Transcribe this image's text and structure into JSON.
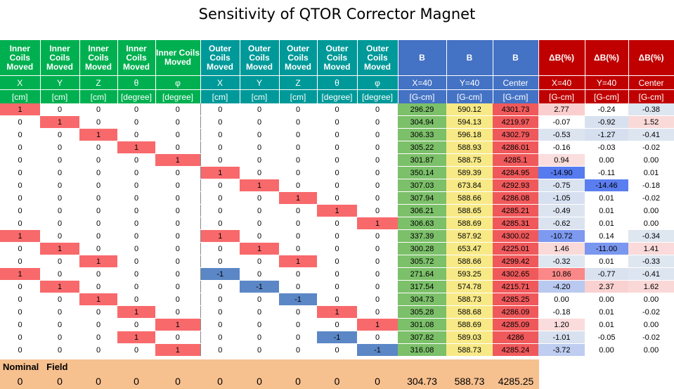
{
  "title": "Sensitivity of QTOR Corrector Magnet",
  "chart_data": {
    "type": "table",
    "header_group": [
      "Inner Coils Moved",
      "Inner Coils Moved",
      "Inner Coils Moved",
      "Inner Coils Moved",
      "Inner Coils Moved",
      "Outer Coils Moved",
      "Outer Coils Moved",
      "Outer Coils Moved",
      "Outer Coils Moved",
      "Outer Coils Moved",
      "B",
      "B",
      "B",
      "ΔB(%)",
      "ΔB(%)",
      "ΔB(%)"
    ],
    "header_sub": [
      "X",
      "Y",
      "Z",
      "θ",
      "φ",
      "X",
      "Y",
      "Z",
      "θ",
      "φ",
      "X=40",
      "Y=40",
      "Center",
      "X=40",
      "Y=40",
      "Center"
    ],
    "header_units": [
      "[cm]",
      "[cm]",
      "[cm]",
      "[degree]",
      "[degree]",
      "[cm]",
      "[cm]",
      "[cm]",
      "[degree]",
      "[degree]",
      "[G-cm]",
      "[G-cm]",
      "[G-cm]",
      "[G-cm]",
      "[G-cm]",
      "[G-cm]"
    ],
    "rows": [
      [
        "1",
        "0",
        "0",
        "0",
        "0",
        "0",
        "0",
        "0",
        "0",
        "0",
        "296.29",
        "590.12",
        "4301.73",
        "2.77",
        "-0.24",
        "-0.38"
      ],
      [
        "0",
        "1",
        "0",
        "0",
        "0",
        "0",
        "0",
        "0",
        "0",
        "0",
        "304.94",
        "594.13",
        "4219.97",
        "-0.07",
        "-0.92",
        "1.52"
      ],
      [
        "0",
        "0",
        "1",
        "0",
        "0",
        "0",
        "0",
        "0",
        "0",
        "0",
        "306.33",
        "596.18",
        "4302.79",
        "-0.53",
        "-1.27",
        "-0.41"
      ],
      [
        "0",
        "0",
        "0",
        "1",
        "0",
        "0",
        "0",
        "0",
        "0",
        "0",
        "305.22",
        "588.93",
        "4286.01",
        "-0.16",
        "-0.03",
        "-0.02"
      ],
      [
        "0",
        "0",
        "0",
        "0",
        "1",
        "0",
        "0",
        "0",
        "0",
        "0",
        "301.87",
        "588.75",
        "4285.1",
        "0.94",
        "0.00",
        "0.00"
      ],
      [
        "0",
        "0",
        "0",
        "0",
        "0",
        "1",
        "0",
        "0",
        "0",
        "0",
        "350.14",
        "589.39",
        "4284.95",
        "-14.90",
        "-0.11",
        "0.01"
      ],
      [
        "0",
        "0",
        "0",
        "0",
        "0",
        "0",
        "1",
        "0",
        "0",
        "0",
        "307.03",
        "673.84",
        "4292.93",
        "-0.75",
        "-14.46",
        "-0.18"
      ],
      [
        "0",
        "0",
        "0",
        "0",
        "0",
        "0",
        "0",
        "1",
        "0",
        "0",
        "307.94",
        "588.66",
        "4286.08",
        "-1.05",
        "0.01",
        "-0.02"
      ],
      [
        "0",
        "0",
        "0",
        "0",
        "0",
        "0",
        "0",
        "0",
        "1",
        "0",
        "306.21",
        "588.65",
        "4285.21",
        "-0.49",
        "0.01",
        "0.00"
      ],
      [
        "0",
        "0",
        "0",
        "0",
        "0",
        "0",
        "0",
        "0",
        "0",
        "1",
        "306.63",
        "588.69",
        "4285.31",
        "-0.62",
        "0.01",
        "0.00"
      ],
      [
        "1",
        "0",
        "0",
        "0",
        "0",
        "1",
        "0",
        "0",
        "0",
        "0",
        "337.39",
        "587.92",
        "4300.02",
        "-10.72",
        "0.14",
        "-0.34"
      ],
      [
        "0",
        "1",
        "0",
        "0",
        "0",
        "0",
        "1",
        "0",
        "0",
        "0",
        "300.28",
        "653.47",
        "4225.01",
        "1.46",
        "-11.00",
        "1.41"
      ],
      [
        "0",
        "0",
        "1",
        "0",
        "0",
        "0",
        "0",
        "1",
        "0",
        "0",
        "305.72",
        "588.66",
        "4299.42",
        "-0.32",
        "0.01",
        "-0.33"
      ],
      [
        "1",
        "0",
        "0",
        "0",
        "0",
        "-1",
        "0",
        "0",
        "0",
        "0",
        "271.64",
        "593.25",
        "4302.65",
        "10.86",
        "-0.77",
        "-0.41"
      ],
      [
        "0",
        "1",
        "0",
        "0",
        "0",
        "0",
        "-1",
        "0",
        "0",
        "0",
        "317.54",
        "574.78",
        "4215.71",
        "-4.20",
        "2.37",
        "1.62"
      ],
      [
        "0",
        "0",
        "1",
        "0",
        "0",
        "0",
        "0",
        "-1",
        "0",
        "0",
        "304.73",
        "588.73",
        "4285.25",
        "0.00",
        "0.00",
        "0.00"
      ],
      [
        "0",
        "0",
        "0",
        "1",
        "0",
        "0",
        "0",
        "0",
        "1",
        "0",
        "305.28",
        "588.68",
        "4286.09",
        "-0.18",
        "0.01",
        "-0.02"
      ],
      [
        "0",
        "0",
        "0",
        "0",
        "1",
        "0",
        "0",
        "0",
        "0",
        "1",
        "301.08",
        "588.69",
        "4285.09",
        "1.20",
        "0.01",
        "0.00"
      ],
      [
        "0",
        "0",
        "0",
        "1",
        "0",
        "0",
        "0",
        "0",
        "-1",
        "0",
        "307.82",
        "589.03",
        "4286",
        "-1.01",
        "-0.05",
        "-0.02"
      ],
      [
        "0",
        "0",
        "0",
        "0",
        "1",
        "0",
        "0",
        "0",
        "0",
        "-1",
        "316.08",
        "588.73",
        "4285.24",
        "-3.72",
        "0.00",
        "0.00"
      ]
    ],
    "nominal": {
      "label_1": "Nominal",
      "label_2": "Field",
      "values": [
        "0",
        "0",
        "0",
        "0",
        "0",
        "0",
        "0",
        "0",
        "0",
        "0",
        "304.73",
        "588.73",
        "4285.25"
      ]
    },
    "colors": {
      "inner_header": "#00b050",
      "outer_header": "#009999",
      "b_header": "#4472c4",
      "delta_header": "#c00000",
      "moved_positive": "#f8696b",
      "moved_negative": "#5b87c6",
      "b_x": "#7cc06a",
      "b_y": "#f7e986",
      "b_center": "#f0595b",
      "nominal_bg": "#f7c08f"
    }
  }
}
